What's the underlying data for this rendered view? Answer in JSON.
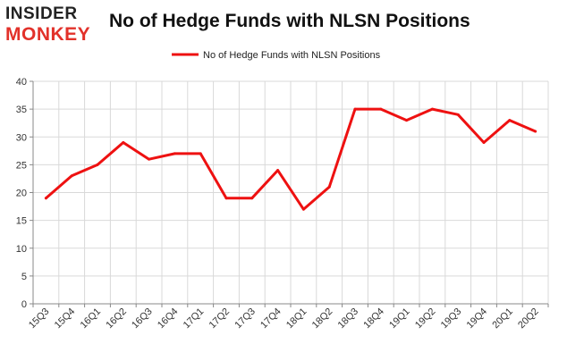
{
  "logo": {
    "line1": "INSIDER",
    "line2": "MONKEY"
  },
  "colors": {
    "series": "#ee1111",
    "brand": "#e2312a",
    "grid": "#d9d9d9"
  },
  "chart_data": {
    "type": "line",
    "title": "No of Hedge Funds with NLSN Positions",
    "xlabel": "",
    "ylabel": "",
    "legend_position": "top-center",
    "grid": true,
    "ylim": [
      0,
      40
    ],
    "yticks": [
      0,
      5,
      10,
      15,
      20,
      25,
      30,
      35,
      40
    ],
    "categories": [
      "15Q3",
      "15Q4",
      "16Q1",
      "16Q2",
      "16Q3",
      "16Q4",
      "17Q1",
      "17Q2",
      "17Q3",
      "17Q4",
      "18Q1",
      "18Q2",
      "18Q3",
      "18Q4",
      "19Q1",
      "19Q2",
      "19Q3",
      "19Q4",
      "20Q1",
      "20Q2"
    ],
    "series": [
      {
        "name": "No of Hedge Funds with NLSN Positions",
        "values": [
          19,
          23,
          25,
          29,
          26,
          27,
          27,
          19,
          19,
          24,
          17,
          21,
          35,
          35,
          33,
          35,
          34,
          29,
          33,
          31
        ]
      }
    ]
  }
}
